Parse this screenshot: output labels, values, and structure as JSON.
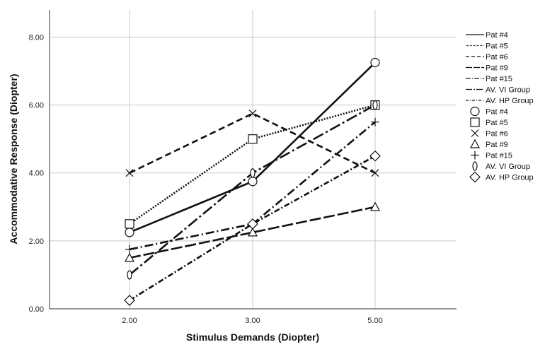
{
  "chart_data": {
    "type": "line",
    "xlabel": "Stimulus Demands (Diopter)",
    "ylabel": "Accommodative Response (Diopter)",
    "categories": [
      "2.00",
      "3.00",
      "5.00"
    ],
    "ylim": [
      0,
      8.8
    ],
    "yticks": [
      "0.00",
      "2.00",
      "4.00",
      "6.00",
      "8.00"
    ],
    "grid": true,
    "legend_position": "right",
    "series": [
      {
        "name": "Pat #4",
        "values": [
          2.25,
          3.75,
          7.25
        ],
        "dash": "solid",
        "marker": "circle",
        "marker_label": "Pat #4"
      },
      {
        "name": "Pat #5",
        "values": [
          2.5,
          5.0,
          6.0
        ],
        "dash": "dotted",
        "marker": "square",
        "marker_label": "Pat #5"
      },
      {
        "name": "Pat #6",
        "values": [
          4.0,
          5.75,
          4.0
        ],
        "dash": "dashed",
        "marker": "x",
        "marker_label": "Pat #6"
      },
      {
        "name": "Pat #9",
        "values": [
          1.5,
          2.25,
          3.0
        ],
        "dash": "longdash",
        "marker": "triangle",
        "marker_label": "Pat #9"
      },
      {
        "name": "Pat #15",
        "values": [
          1.75,
          2.5,
          5.5
        ],
        "dash": "dashdot",
        "marker": "plus",
        "marker_label": "Pat #15"
      },
      {
        "name": "AV. VI Group",
        "values": [
          1.0,
          4.0,
          6.0
        ],
        "dash": "longdashdot",
        "marker": "ellipse",
        "marker_label": "AV. VI Group"
      },
      {
        "name": "AV. HP Group",
        "values": [
          0.25,
          2.5,
          4.5
        ],
        "dash": "dashdot2",
        "marker": "diamond",
        "marker_label": "AV. HP Group"
      }
    ]
  }
}
